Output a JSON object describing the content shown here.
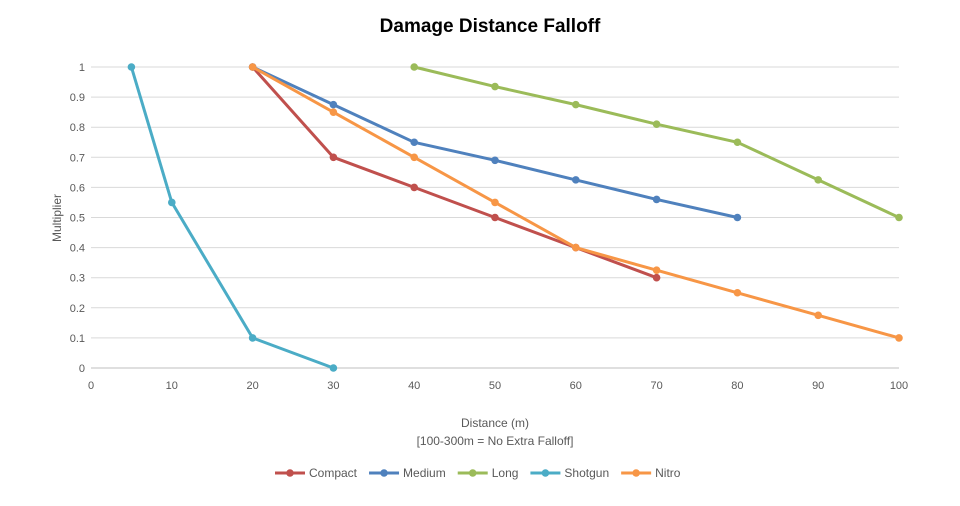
{
  "chart_data": {
    "type": "line",
    "title": "Damage Distance Falloff",
    "xlabel": "Distance (m)",
    "xlabel_note": "[100-300m = No Extra Falloff]",
    "ylabel": "Multiplier",
    "xlim": [
      0,
      100
    ],
    "ylim": [
      0,
      1
    ],
    "x_ticks": [
      "0",
      "10",
      "20",
      "30",
      "40",
      "50",
      "60",
      "70",
      "80",
      "90",
      "100"
    ],
    "y_ticks": [
      "0",
      "0.1",
      "0.2",
      "0.3",
      "0.4",
      "0.5",
      "0.6",
      "0.7",
      "0.8",
      "0.9",
      "1"
    ],
    "grid": true,
    "legend_position": "bottom",
    "series": [
      {
        "name": "Compact",
        "color": "#C0504D",
        "x": [
          20,
          30,
          40,
          50,
          60,
          70
        ],
        "y": [
          1.0,
          0.7,
          0.6,
          0.5,
          0.4,
          0.3
        ]
      },
      {
        "name": "Medium",
        "color": "#4F81BD",
        "x": [
          20,
          30,
          40,
          50,
          60,
          70,
          80
        ],
        "y": [
          1.0,
          0.875,
          0.75,
          0.69,
          0.625,
          0.56,
          0.5
        ]
      },
      {
        "name": "Long",
        "color": "#9BBB59",
        "x": [
          40,
          50,
          60,
          70,
          80,
          90,
          100
        ],
        "y": [
          1.0,
          0.935,
          0.875,
          0.81,
          0.75,
          0.625,
          0.5
        ]
      },
      {
        "name": "Shotgun",
        "color": "#4BACC6",
        "x": [
          5,
          10,
          20,
          30
        ],
        "y": [
          1.0,
          0.55,
          0.1,
          0.0
        ]
      },
      {
        "name": "Nitro",
        "color": "#F79646",
        "x": [
          20,
          30,
          40,
          50,
          60,
          70,
          80,
          90,
          100
        ],
        "y": [
          1.0,
          0.85,
          0.7,
          0.55,
          0.4,
          0.325,
          0.25,
          0.175,
          0.1
        ]
      }
    ]
  }
}
